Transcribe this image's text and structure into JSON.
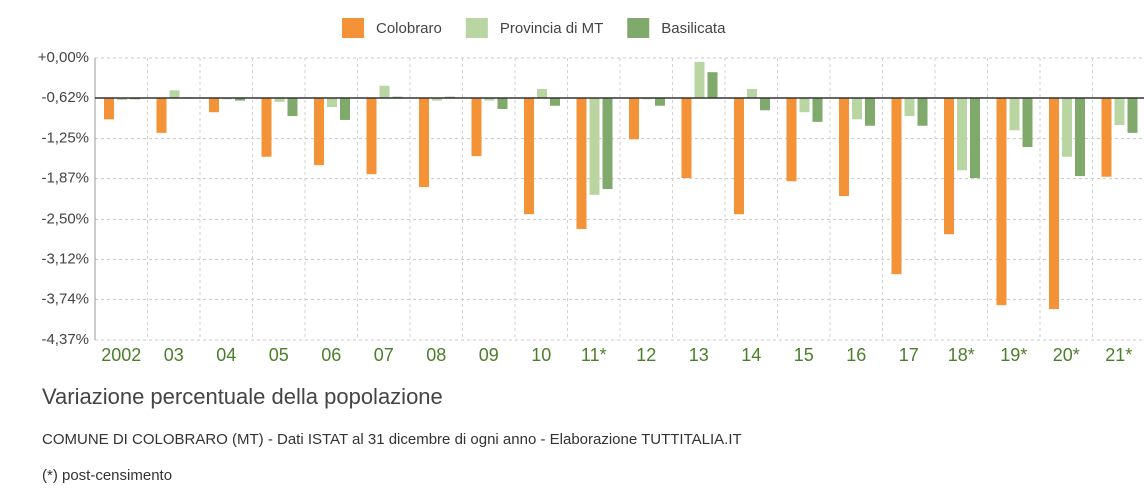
{
  "chart_data": {
    "type": "bar",
    "title": "Variazione percentuale della popolazione",
    "subtitle": "COMUNE DI COLOBRARO (MT) - Dati ISTAT al 31 dicembre di ogni anno - Elaborazione TUTTITALIA.IT",
    "annotation": "(*) post-censimento",
    "categories": [
      "2002",
      "03",
      "04",
      "05",
      "06",
      "07",
      "08",
      "09",
      "10",
      "11*",
      "12",
      "13",
      "14",
      "15",
      "16",
      "17",
      "18*",
      "19*",
      "20*",
      "21*"
    ],
    "series": [
      {
        "name": "Colobraro",
        "color": "#f39237",
        "values": [
          -0.95,
          -1.16,
          -0.84,
          -1.53,
          -1.66,
          -1.8,
          -2.0,
          -1.52,
          -2.42,
          -2.65,
          -1.26,
          -1.86,
          -2.42,
          -1.91,
          -2.14,
          -3.35,
          -2.73,
          -3.83,
          -3.89,
          -1.84
        ]
      },
      {
        "name": "Provincia di MT",
        "color": "#b9d5a1",
        "values": [
          -0.65,
          -0.5,
          -0.64,
          -0.68,
          -0.76,
          -0.43,
          -0.66,
          -0.66,
          -0.48,
          -2.12,
          -0.64,
          -0.06,
          -0.48,
          -0.84,
          -0.95,
          -0.9,
          -1.74,
          -1.12,
          -1.53,
          -1.04
        ]
      },
      {
        "name": "Basilicata",
        "color": "#80aa6b",
        "values": [
          -0.64,
          -0.61,
          -0.66,
          -0.9,
          -0.96,
          -0.6,
          -0.6,
          -0.79,
          -0.74,
          -2.03,
          -0.74,
          -0.22,
          -0.81,
          -0.99,
          -1.05,
          -1.05,
          -1.86,
          -1.38,
          -1.83,
          -1.16
        ]
      }
    ],
    "ylim": [
      -4.37,
      0
    ],
    "yticks": [
      {
        "value": 0,
        "label": "+0,00%"
      },
      {
        "value": -0.62,
        "label": "-0,62%"
      },
      {
        "value": -1.25,
        "label": "-1,25%"
      },
      {
        "value": -1.87,
        "label": "-1,87%"
      },
      {
        "value": -2.5,
        "label": "-2,50%"
      },
      {
        "value": -3.12,
        "label": "-3,12%"
      },
      {
        "value": -3.74,
        "label": "-3,74%"
      },
      {
        "value": -4.37,
        "label": "-4,37%"
      }
    ],
    "baseline": -0.62,
    "grid": true,
    "legend": "top"
  }
}
